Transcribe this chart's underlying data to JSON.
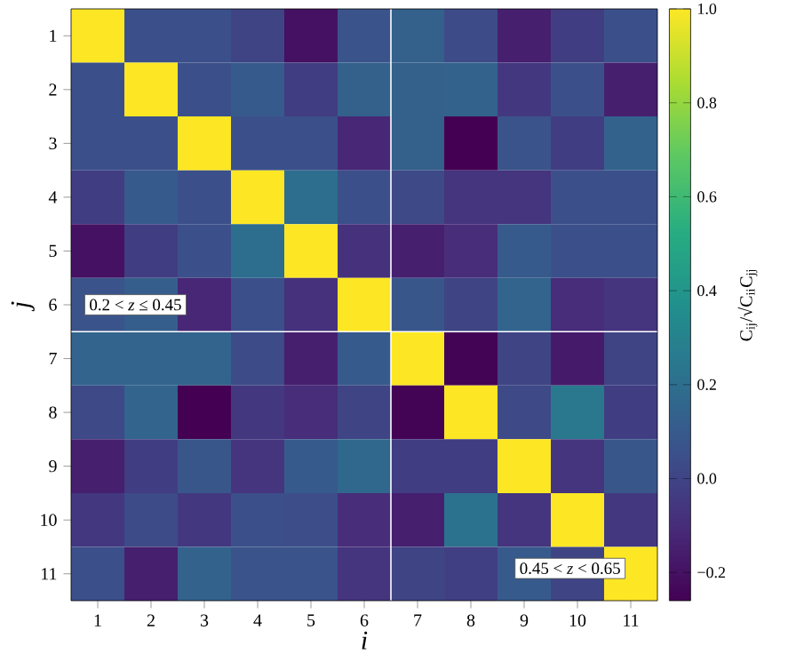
{
  "chart_data": {
    "type": "heatmap",
    "xlabel": "i",
    "ylabel": "j",
    "clabel": "C$_{ij}$/√C$_{ii}$C$_{jj}$",
    "categories": [
      "1",
      "2",
      "3",
      "4",
      "5",
      "6",
      "7",
      "8",
      "9",
      "10",
      "11"
    ],
    "y_categories": [
      "1",
      "2",
      "3",
      "4",
      "5",
      "6",
      "7",
      "8",
      "9",
      "10",
      "11"
    ],
    "cells": [
      [
        1,
        0.05,
        0.05,
        0.0,
        -0.2,
        0.07,
        0.13,
        0.03,
        -0.15,
        -0.03,
        0.05
      ],
      [
        0.05,
        1,
        0.05,
        0.1,
        -0.03,
        0.13,
        0.13,
        0.14,
        -0.05,
        0.05,
        -0.15
      ],
      [
        0.05,
        0.05,
        1,
        0.05,
        0.05,
        -0.12,
        0.13,
        -0.26,
        0.07,
        -0.03,
        0.14
      ],
      [
        -0.03,
        0.1,
        0.05,
        1,
        0.2,
        0.05,
        0.02,
        -0.07,
        -0.07,
        0.05,
        0.05
      ],
      [
        -0.2,
        -0.03,
        0.05,
        0.2,
        1,
        -0.08,
        -0.15,
        -0.1,
        0.1,
        0.05,
        0.05
      ],
      [
        0.07,
        0.12,
        -0.12,
        0.05,
        -0.08,
        1,
        0.08,
        0.0,
        0.15,
        -0.1,
        -0.07
      ],
      [
        0.15,
        0.15,
        0.15,
        0.03,
        -0.15,
        0.1,
        1,
        -0.25,
        0.0,
        -0.17,
        0.0
      ],
      [
        0.02,
        0.15,
        -0.26,
        -0.05,
        -0.1,
        0.0,
        -0.25,
        1,
        0.02,
        0.25,
        -0.03
      ],
      [
        -0.15,
        -0.03,
        0.08,
        -0.07,
        0.1,
        0.17,
        -0.03,
        -0.03,
        1,
        -0.07,
        0.08
      ],
      [
        -0.05,
        0.03,
        -0.05,
        0.05,
        0.04,
        -0.1,
        -0.15,
        0.22,
        -0.07,
        1,
        -0.05
      ],
      [
        0.05,
        -0.15,
        0.14,
        0.07,
        0.07,
        -0.07,
        0.0,
        -0.02,
        0.1,
        0.0,
        1
      ]
    ],
    "clim": [
      -0.26,
      1.0
    ],
    "cticks": [
      {
        "value": -0.2,
        "label": "−0.2"
      },
      {
        "value": 0,
        "label": "0.0"
      },
      {
        "value": 0.2,
        "label": "0.2"
      },
      {
        "value": 0.4,
        "label": "0.4"
      },
      {
        "value": 0.6,
        "label": "0.6"
      },
      {
        "value": 0.8,
        "label": "0.8"
      },
      {
        "value": 1.0,
        "label": "1.0"
      }
    ],
    "annotations": [
      "0.2 < *z* ≤ 0.45",
      "0.45 < *z* < 0.65"
    ]
  }
}
